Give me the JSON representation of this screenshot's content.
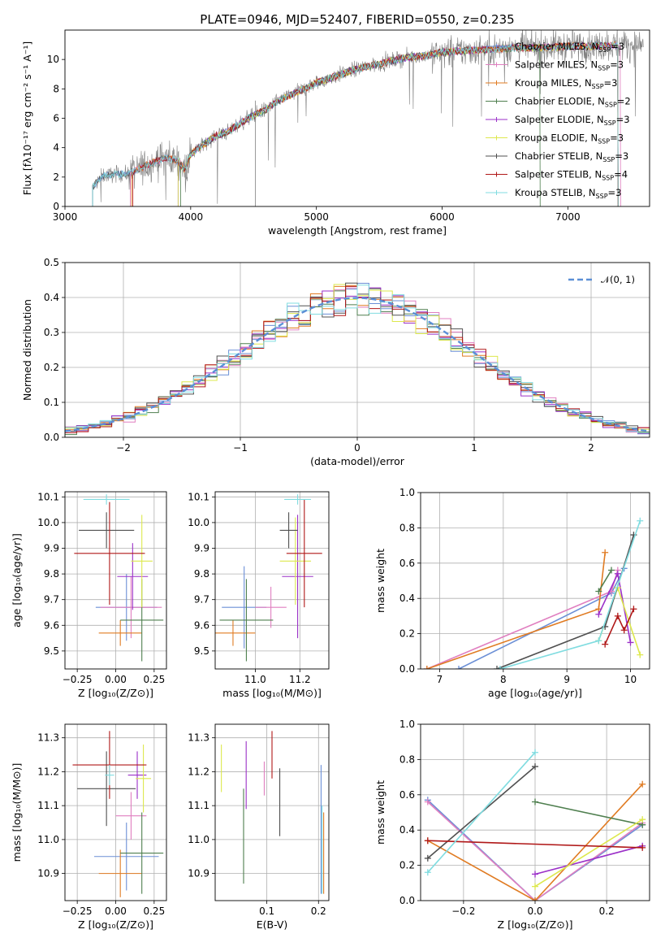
{
  "figure": {
    "title": "PLATE=0946, MJD=52407, FIBERID=0550, z=0.235",
    "series_colors": {
      "Chabrier MILES": "#6b8fd6",
      "Salpeter MILES": "#e07fc0",
      "Kroupa MILES": "#e07b22",
      "Chabrier ELODIE": "#4f7f4f",
      "Salpeter ELODIE": "#9b30c8",
      "Kroupa ELODIE": "#dde84d",
      "Chabrier STELIB": "#505050",
      "Salpeter STELIB": "#b01818",
      "Kroupa STELIB": "#80dce0",
      "data": "#808080",
      "normal": "#5b8fd6"
    }
  },
  "chart_data": [
    {
      "id": "spectrum",
      "type": "line",
      "xlabel": "wavelength [Angstrom, rest frame]",
      "ylabel": "Flux [fλ10⁻¹⁷ erg cm⁻² s⁻¹ A⁻¹]",
      "xlim": [
        3000,
        7650
      ],
      "ylim": [
        0,
        12
      ],
      "xticks": [
        "3000",
        "4000",
        "5000",
        "6000",
        "7000"
      ],
      "yticks": [
        "0",
        "2",
        "4",
        "6",
        "8",
        "10"
      ],
      "legend_position": "top-right",
      "legend": [
        {
          "label": "Chabrier MILES, N",
          "sub": "SSP",
          "tail": "=3"
        },
        {
          "label": "Salpeter MILES, N",
          "sub": "SSP",
          "tail": "=3"
        },
        {
          "label": "Kroupa MILES, N",
          "sub": "SSP",
          "tail": "=3"
        },
        {
          "label": "Chabrier ELODIE, N",
          "sub": "SSP",
          "tail": "=2"
        },
        {
          "label": "Salpeter ELODIE, N",
          "sub": "SSP",
          "tail": "=3"
        },
        {
          "label": "Kroupa ELODIE, N",
          "sub": "SSP",
          "tail": "=3"
        },
        {
          "label": "Chabrier STELIB, N",
          "sub": "SSP",
          "tail": "=3"
        },
        {
          "label": "Salpeter STELIB, N",
          "sub": "SSP",
          "tail": "=4"
        },
        {
          "label": "Kroupa STELIB, N",
          "sub": "SSP",
          "tail": "=3"
        }
      ],
      "continuum": [
        [
          3220,
          1.3
        ],
        [
          3300,
          2.1
        ],
        [
          3400,
          2.2
        ],
        [
          3500,
          2.2
        ],
        [
          3600,
          2.6
        ],
        [
          3700,
          3.0
        ],
        [
          3800,
          3.3
        ],
        [
          3900,
          3.1
        ],
        [
          3950,
          2.5
        ],
        [
          4000,
          3.6
        ],
        [
          4100,
          4.2
        ],
        [
          4200,
          4.8
        ],
        [
          4300,
          5.1
        ],
        [
          4400,
          5.7
        ],
        [
          4500,
          6.2
        ],
        [
          4600,
          6.6
        ],
        [
          4700,
          7.2
        ],
        [
          4800,
          7.6
        ],
        [
          4900,
          8.0
        ],
        [
          5000,
          8.4
        ],
        [
          5100,
          8.7
        ],
        [
          5200,
          9.0
        ],
        [
          5300,
          9.3
        ],
        [
          5400,
          9.5
        ],
        [
          5500,
          9.7
        ],
        [
          5600,
          9.9
        ],
        [
          5700,
          10.1
        ],
        [
          5800,
          10.2
        ],
        [
          5900,
          10.3
        ],
        [
          6000,
          10.5
        ],
        [
          6200,
          10.6
        ],
        [
          6400,
          10.7
        ],
        [
          6600,
          10.8
        ],
        [
          6800,
          10.8
        ],
        [
          7000,
          10.9
        ],
        [
          7200,
          10.9
        ],
        [
          7400,
          11.0
        ],
        [
          7600,
          11.0
        ]
      ],
      "model_range": [
        [
          3220,
          7400
        ],
        [
          3520,
          7420
        ],
        [
          3530,
          7400
        ],
        [
          3920,
          6780
        ],
        [
          3900,
          7400
        ],
        [
          3900,
          7400
        ],
        [
          3220,
          7400
        ],
        [
          3540,
          7400
        ],
        [
          3220,
          7400
        ]
      ]
    },
    {
      "id": "residual_histogram",
      "type": "line",
      "xlabel": "(data-model)/error",
      "ylabel": "Normed distribution",
      "xlim": [
        -2.5,
        2.5
      ],
      "ylim": [
        0,
        0.5
      ],
      "xticks": [
        "−2",
        "−1",
        "0",
        "1",
        "2"
      ],
      "yticks": [
        "0.0",
        "0.1",
        "0.2",
        "0.3",
        "0.4",
        "0.5"
      ],
      "legend_position": "top-right",
      "legend": [
        "𝒩(0, 1)"
      ],
      "bin_width": 0.1
    },
    {
      "id": "age_vs_Z",
      "type": "scatter",
      "xlabel": "Z [log₁₀(Z/Z⊙)]",
      "ylabel": "age  [log₁₀(age/yr)]",
      "xlim": [
        -0.33,
        0.33
      ],
      "ylim": [
        9.43,
        10.12
      ],
      "xticks": [
        "−0.25",
        "0.00",
        "0.25"
      ],
      "yticks": [
        "9.5",
        "9.6",
        "9.7",
        "9.8",
        "9.9",
        "10.0",
        "10.1"
      ],
      "points": [
        {
          "x": 0.07,
          "xerr": 0.2,
          "y": 9.67,
          "yerr": 0.13
        },
        {
          "x": 0.1,
          "xerr": 0.2,
          "y": 9.67,
          "yerr": 0.12
        },
        {
          "x": 0.03,
          "xerr": 0.14,
          "y": 9.57,
          "yerr": 0.05
        },
        {
          "x": 0.17,
          "xerr": 0.14,
          "y": 9.62,
          "yerr": 0.16
        },
        {
          "x": 0.11,
          "xerr": 0.1,
          "y": 9.79,
          "yerr": 0.13
        },
        {
          "x": 0.17,
          "xerr": 0.07,
          "y": 9.85,
          "yerr": 0.18
        },
        {
          "x": -0.06,
          "xerr": 0.18,
          "y": 9.97,
          "yerr": 0.07
        },
        {
          "x": -0.04,
          "xerr": 0.23,
          "y": 9.88,
          "yerr": 0.2
        },
        {
          "x": -0.06,
          "xerr": 0.15,
          "y": 10.09,
          "yerr": 0.02
        }
      ]
    },
    {
      "id": "age_vs_mass",
      "type": "scatter",
      "xlabel": "mass [log₁₀(M/M⊙)]",
      "ylabel": "",
      "xlim": [
        10.82,
        11.33
      ],
      "ylim": [
        9.43,
        10.12
      ],
      "xticks": [
        "11.0",
        "11.2"
      ],
      "yticks": [
        "9.5",
        "9.6",
        "9.7",
        "9.8",
        "9.9",
        "10.0",
        "10.1"
      ],
      "points": [
        {
          "x": 10.95,
          "xerr": 0.1,
          "y": 9.67,
          "yerr": 0.16
        },
        {
          "x": 11.07,
          "xerr": 0.07,
          "y": 9.67,
          "yerr": 0.08
        },
        {
          "x": 10.9,
          "xerr": 0.1,
          "y": 9.57,
          "yerr": 0.05
        },
        {
          "x": 10.96,
          "xerr": 0.12,
          "y": 9.62,
          "yerr": 0.16
        },
        {
          "x": 11.19,
          "xerr": 0.07,
          "y": 9.79,
          "yerr": 0.24
        },
        {
          "x": 11.18,
          "xerr": 0.07,
          "y": 9.85,
          "yerr": 0.17
        },
        {
          "x": 11.15,
          "xerr": 0.04,
          "y": 9.97,
          "yerr": 0.07
        },
        {
          "x": 11.22,
          "xerr": 0.08,
          "y": 9.88,
          "yerr": 0.21
        },
        {
          "x": 11.19,
          "xerr": 0.06,
          "y": 10.09,
          "yerr": 0.02
        }
      ]
    },
    {
      "id": "massweight_vs_age",
      "type": "line",
      "xlabel": "age  [log₁₀(age/yr)]",
      "ylabel": "mass weight",
      "xlim": [
        6.7,
        10.3
      ],
      "ylim": [
        0,
        1.0
      ],
      "xticks": [
        "7",
        "8",
        "9",
        "10"
      ],
      "yticks": [
        "0.0",
        "0.2",
        "0.4",
        "0.6",
        "0.8",
        "1.0"
      ],
      "series": [
        {
          "name": "Chabrier MILES",
          "x": [
            7.3,
            9.7,
            9.9
          ],
          "y": [
            0.0,
            0.43,
            0.57
          ]
        },
        {
          "name": "Salpeter MILES",
          "x": [
            6.8,
            9.7,
            9.8
          ],
          "y": [
            0.0,
            0.44,
            0.56
          ]
        },
        {
          "name": "Kroupa MILES",
          "x": [
            6.8,
            9.5,
            9.6
          ],
          "y": [
            0.0,
            0.34,
            0.66
          ]
        },
        {
          "name": "Chabrier ELODIE",
          "x": [
            9.5,
            9.7
          ],
          "y": [
            0.44,
            0.56
          ]
        },
        {
          "name": "Salpeter ELODIE",
          "x": [
            9.5,
            9.8,
            10.0
          ],
          "y": [
            0.31,
            0.54,
            0.15
          ]
        },
        {
          "name": "Kroupa ELODIE",
          "x": [
            9.5,
            9.8,
            10.15
          ],
          "y": [
            0.16,
            0.46,
            0.08
          ]
        },
        {
          "name": "Chabrier STELIB",
          "x": [
            7.9,
            9.6,
            10.05
          ],
          "y": [
            0.0,
            0.24,
            0.76
          ]
        },
        {
          "name": "Salpeter STELIB",
          "x": [
            9.6,
            9.8,
            9.9,
            10.05
          ],
          "y": [
            0.14,
            0.3,
            0.22,
            0.34
          ]
        },
        {
          "name": "Kroupa STELIB",
          "x": [
            7.95,
            9.5,
            10.15
          ],
          "y": [
            0.0,
            0.16,
            0.84
          ]
        }
      ]
    },
    {
      "id": "mass_vs_Z",
      "type": "scatter",
      "xlabel": "Z [log₁₀(Z/Z⊙)]",
      "ylabel": "mass [log₁₀(M/M⊙)]",
      "xlim": [
        -0.33,
        0.33
      ],
      "ylim": [
        10.82,
        11.34
      ],
      "xticks": [
        "−0.25",
        "0.00",
        "0.25"
      ],
      "yticks": [
        "10.9",
        "11.0",
        "11.1",
        "11.2",
        "11.3"
      ],
      "points": [
        {
          "x": 0.07,
          "xerr": 0.21,
          "y": 10.95,
          "yerr": 0.1
        },
        {
          "x": 0.1,
          "xerr": 0.1,
          "y": 11.07,
          "yerr": 0.07
        },
        {
          "x": 0.03,
          "xerr": 0.14,
          "y": 10.9,
          "yerr": 0.07
        },
        {
          "x": 0.17,
          "xerr": 0.14,
          "y": 10.96,
          "yerr": 0.12
        },
        {
          "x": 0.14,
          "xerr": 0.06,
          "y": 11.19,
          "yerr": 0.07
        },
        {
          "x": 0.18,
          "xerr": 0.05,
          "y": 11.18,
          "yerr": 0.1
        },
        {
          "x": -0.06,
          "xerr": 0.19,
          "y": 11.15,
          "yerr": 0.11
        },
        {
          "x": -0.04,
          "xerr": 0.24,
          "y": 11.22,
          "yerr": 0.1
        },
        {
          "x": -0.04,
          "xerr": 0.03,
          "y": 11.19,
          "yerr": 0.03
        }
      ]
    },
    {
      "id": "mass_vs_EBV",
      "type": "scatter",
      "xlabel": "E(B-V)",
      "ylabel": "",
      "xlim": [
        0.0,
        0.22
      ],
      "ylim": [
        10.82,
        11.34
      ],
      "xticks": [
        "0.1",
        "0.2"
      ],
      "yticks": [
        "10.9",
        "11.0",
        "11.1",
        "11.2",
        "11.3"
      ],
      "points": [
        {
          "x": 0.205,
          "y": 11.03,
          "yerr": 0.19
        },
        {
          "x": 0.095,
          "y": 11.18,
          "yerr": 0.05
        },
        {
          "x": 0.21,
          "y": 10.96,
          "yerr": 0.12
        },
        {
          "x": 0.055,
          "y": 11.01,
          "yerr": 0.14
        },
        {
          "x": 0.06,
          "y": 11.19,
          "yerr": 0.1
        },
        {
          "x": 0.012,
          "y": 11.21,
          "yerr": 0.07
        },
        {
          "x": 0.125,
          "y": 11.11,
          "yerr": 0.1
        },
        {
          "x": 0.11,
          "y": 11.25,
          "yerr": 0.07
        },
        {
          "x": 0.207,
          "y": 10.97,
          "yerr": 0.13
        }
      ]
    },
    {
      "id": "massweight_vs_Z",
      "type": "line",
      "xlabel": "Z [log₁₀(Z/Z⊙)]",
      "ylabel": "mass weight",
      "xlim": [
        -0.32,
        0.32
      ],
      "ylim": [
        0,
        1.0
      ],
      "xticks": [
        "−0.2",
        "0.0",
        "0.2"
      ],
      "yticks": [
        "0.0",
        "0.2",
        "0.4",
        "0.6",
        "0.8",
        "1.0"
      ],
      "series": [
        {
          "name": "Chabrier MILES",
          "x": [
            -0.3,
            0.0,
            0.3
          ],
          "y": [
            0.57,
            0.0,
            0.43
          ]
        },
        {
          "name": "Salpeter MILES",
          "x": [
            -0.3,
            0.0,
            0.3
          ],
          "y": [
            0.56,
            0.0,
            0.44
          ]
        },
        {
          "name": "Kroupa MILES",
          "x": [
            -0.3,
            0.0,
            0.3
          ],
          "y": [
            0.34,
            0.0,
            0.66
          ]
        },
        {
          "name": "Chabrier ELODIE",
          "x": [
            0.0,
            0.3
          ],
          "y": [
            0.56,
            0.43
          ]
        },
        {
          "name": "Salpeter ELODIE",
          "x": [
            0.0,
            0.3
          ],
          "y": [
            0.15,
            0.31
          ]
        },
        {
          "name": "Kroupa ELODIE",
          "x": [
            0.0,
            0.3
          ],
          "y": [
            0.08,
            0.46
          ]
        },
        {
          "name": "Chabrier STELIB",
          "x": [
            -0.3,
            0.0
          ],
          "y": [
            0.24,
            0.76
          ]
        },
        {
          "name": "Salpeter STELIB",
          "x": [
            -0.3,
            0.3
          ],
          "y": [
            0.34,
            0.3
          ]
        },
        {
          "name": "Kroupa STELIB",
          "x": [
            -0.3,
            0.0
          ],
          "y": [
            0.16,
            0.84
          ]
        }
      ]
    }
  ]
}
